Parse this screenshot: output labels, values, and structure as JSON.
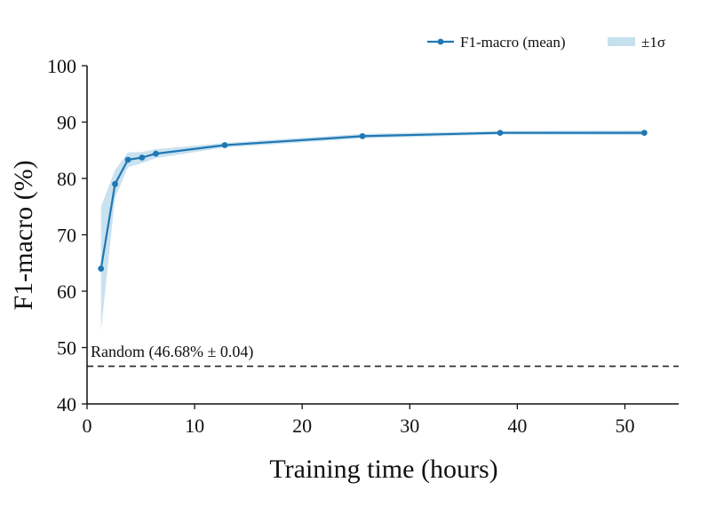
{
  "chart_data": {
    "type": "line",
    "xlabel": "Training time (hours)",
    "ylabel": "F1-macro (%)",
    "xlim": [
      0,
      55
    ],
    "ylim": [
      40,
      100
    ],
    "xticks": [
      "0",
      "10",
      "20",
      "30",
      "40",
      "50"
    ],
    "yticks": [
      "40",
      "50",
      "60",
      "70",
      "80",
      "90",
      "100"
    ],
    "grid": false,
    "legend_position": "top-right",
    "series": [
      {
        "name": "F1-macro (mean)",
        "color": "#1f77b4",
        "x": [
          1.3,
          2.6,
          3.8,
          5.1,
          6.4,
          12.8,
          25.6,
          38.4,
          51.8
        ],
        "y": [
          64.0,
          79.0,
          83.3,
          83.7,
          84.4,
          85.9,
          87.5,
          88.1,
          88.1
        ],
        "lower": [
          53.0,
          76.5,
          82.0,
          82.7,
          83.6,
          85.5,
          87.1,
          87.8,
          87.7
        ],
        "upper": [
          75.0,
          81.5,
          84.6,
          84.7,
          85.2,
          86.3,
          87.9,
          88.4,
          88.5
        ]
      }
    ],
    "band_label": "±1σ",
    "band_color": "#c6e0ee",
    "baseline": {
      "y": 46.68,
      "label": "Random (46.68% ± 0.04)",
      "style": "dashed",
      "color": "#222222"
    }
  }
}
